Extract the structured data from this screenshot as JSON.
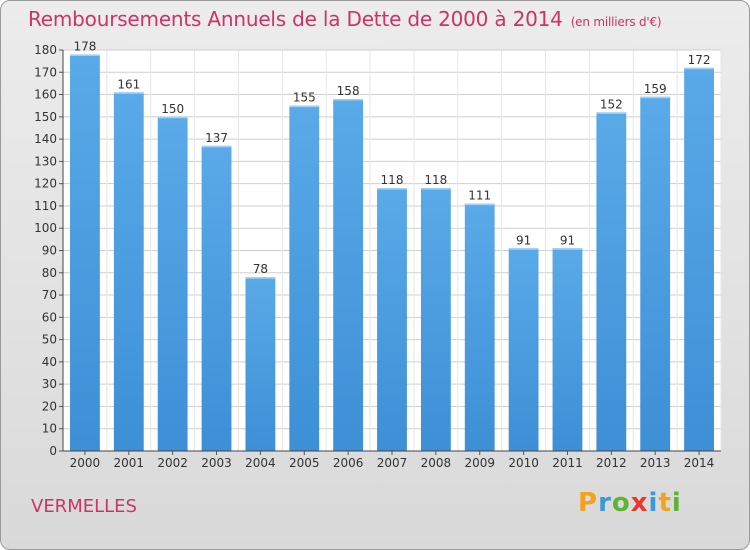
{
  "header": {
    "title": "Remboursements Annuels de la Dette de 2000 à 2014",
    "unit": "(en milliers d'€)"
  },
  "commune": "VERMELLES",
  "logo": {
    "text": "Proxiti",
    "letters": [
      {
        "ch": "P",
        "color": "#f2a21b"
      },
      {
        "ch": "r",
        "color": "#3a9ad9"
      },
      {
        "ch": "o",
        "color": "#5cb531"
      },
      {
        "ch": "x",
        "color": "#e8372b"
      },
      {
        "ch": "i",
        "color": "#3a9ad9"
      },
      {
        "ch": "t",
        "color": "#f2a21b"
      },
      {
        "ch": "i",
        "color": "#5cb531"
      }
    ]
  },
  "chart_data": {
    "type": "bar",
    "categories": [
      "2000",
      "2001",
      "2002",
      "2003",
      "2004",
      "2005",
      "2006",
      "2007",
      "2008",
      "2009",
      "2010",
      "2011",
      "2012",
      "2013",
      "2014"
    ],
    "values": [
      178,
      161,
      150,
      137,
      78,
      155,
      158,
      118,
      118,
      111,
      91,
      91,
      152,
      159,
      172
    ],
    "ylim": [
      0,
      180
    ],
    "ytick_step": 10,
    "grid": true,
    "bar_color": "#3d8fd6",
    "bar_color_light": "#5aaae8",
    "grid_color": "#cfcfcf",
    "label_color": "#333333"
  }
}
